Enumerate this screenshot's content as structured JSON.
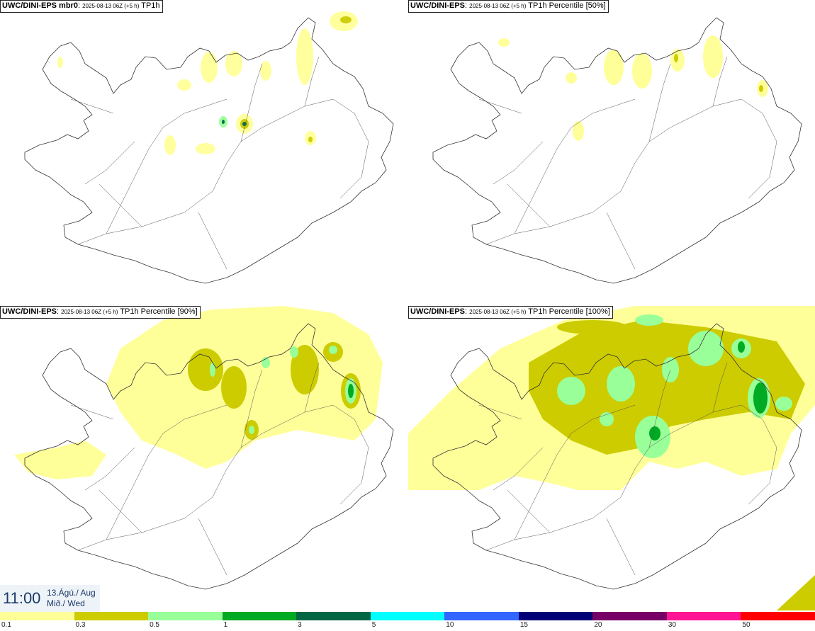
{
  "panels": [
    {
      "model": "UWC/DINI-EPS mbr0",
      "date": "2025-08-13 06Z (+5 h)",
      "field": "TP1h"
    },
    {
      "model": "UWC/DINI-EPS",
      "date": "2025-08-13 06Z (+5 h)",
      "field": "TP1h Percentile [50%]"
    },
    {
      "model": "UWC/DINI-EPS",
      "date": "2025-08-13 06Z (+5 h)",
      "field": "TP1h Percentile [90%]"
    },
    {
      "model": "UWC/DINI-EPS",
      "date": "2025-08-13 06Z (+5 h)",
      "field": "TP1h Percentile [100%]"
    }
  ],
  "valid_time": {
    "clock": "11:00",
    "date_line": "13.Ágú./ Aug",
    "day_line": "Mið./ Wed"
  },
  "colorbar": {
    "colors": [
      "#ffff99",
      "#cccc00",
      "#99ff99",
      "#00aa22",
      "#006644",
      "#00ffff",
      "#3366ff",
      "#000077",
      "#770066",
      "#ff1493",
      "#ff0000"
    ],
    "labels": [
      "0.1",
      "0.3",
      "0.5",
      "1",
      "3",
      "5",
      "10",
      "15",
      "20",
      "30",
      "50"
    ]
  },
  "legend_colors": {
    "light": "#ffff99",
    "mid": "#cccc00",
    "pale_green": "#99ff99",
    "green": "#00aa22",
    "dark_green": "#006644"
  }
}
